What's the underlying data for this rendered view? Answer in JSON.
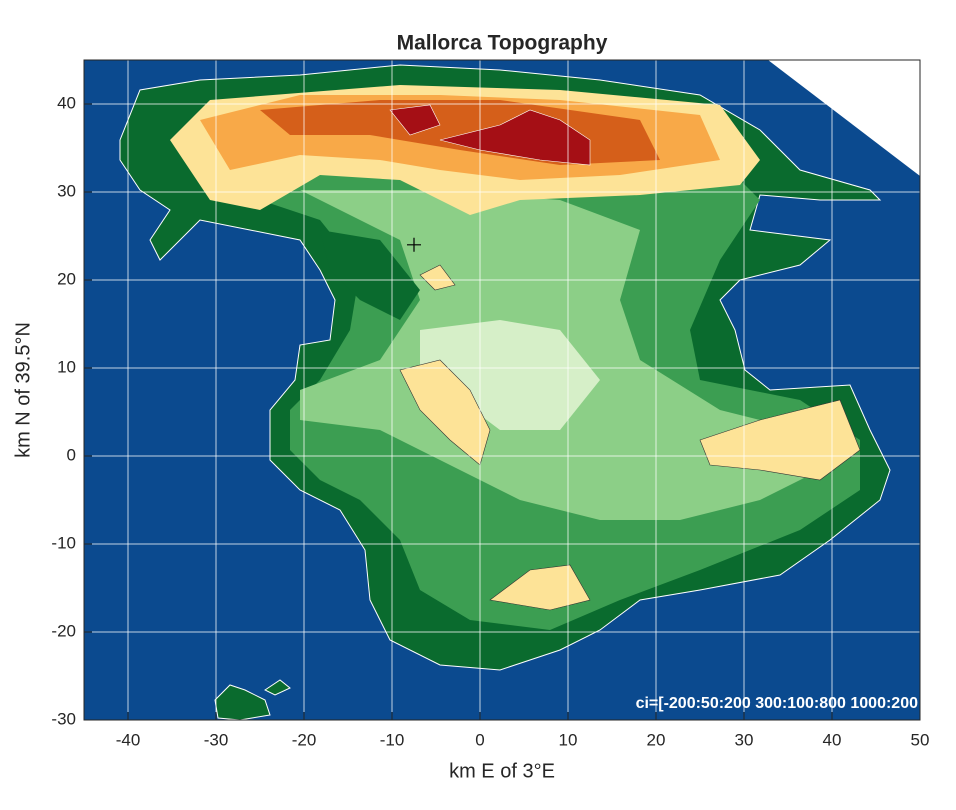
{
  "chart_data": {
    "type": "map",
    "title": "Mallorca Topography",
    "x_label": "km E of 3°E",
    "y_label": "km N of 39.5°N",
    "xlim": [
      -45,
      50
    ],
    "ylim": [
      -30,
      45
    ],
    "xticks": [
      -40,
      -30,
      -20,
      -10,
      0,
      10,
      20,
      30,
      40,
      50
    ],
    "yticks": [
      -30,
      -20,
      -10,
      0,
      10,
      20,
      30,
      40
    ],
    "grid": true,
    "annotation": "ci=[-200:50:200 300:100:800 1000:200",
    "marker": {
      "x": -7.5,
      "y": 24
    }
  }
}
